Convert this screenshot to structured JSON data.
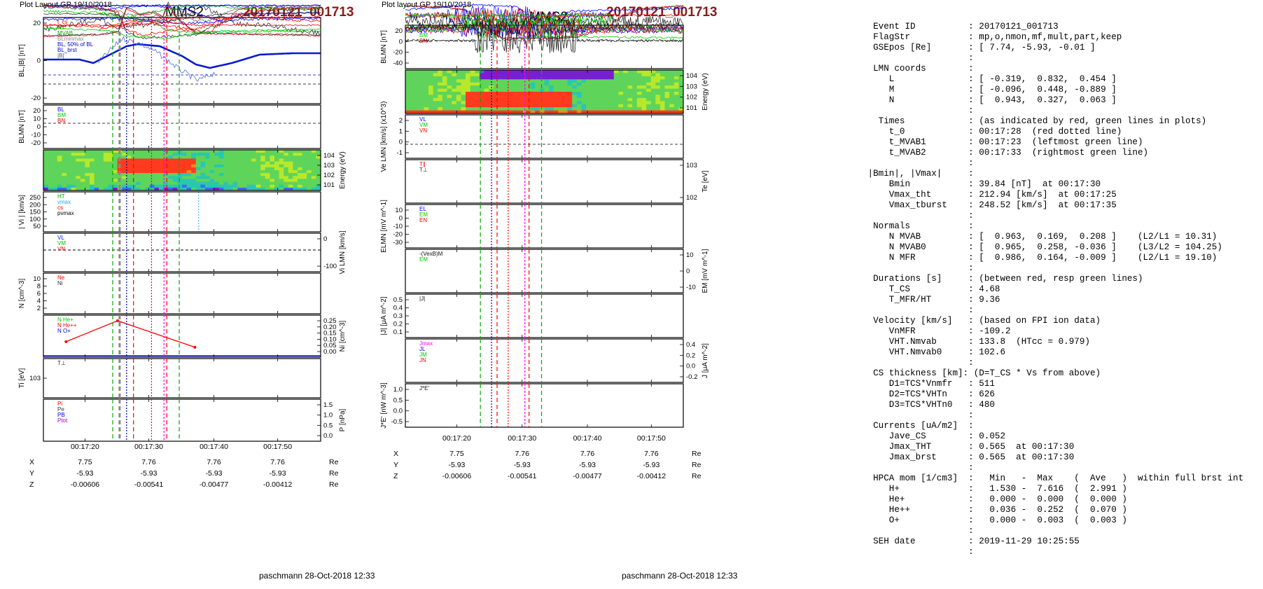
{
  "left": {
    "header": "Plot Layout GP 19/10/2018",
    "sat": "MMS2",
    "event": "20170121_001713",
    "footer": "paschmann 28-Oct-2018 12:33",
    "panels": [
      {
        "ylabel": "BL,|B| [nT]",
        "legend": [
          "t_cs",
          "HT",
          "MVAB",
          "BLminmax",
          "BL, 50% of BL",
          "BL_brst",
          "|B|"
        ],
        "yticks": [
          "20",
          "0",
          "-20"
        ]
      },
      {
        "ylabel": "BLMN [nT]",
        "legend": [
          "BL",
          "BM",
          "BN"
        ],
        "yticks": [
          "20",
          "10",
          "0",
          "-10",
          "-20"
        ]
      },
      {
        "ylabel": "Energy (eV)",
        "legend": [],
        "yticks": [
          "10^4",
          "10^3",
          "10^2",
          "10^1"
        ]
      },
      {
        "ylabel": "| Vi | [km/s]",
        "legend": [
          "HT",
          "vmax",
          "cs",
          "pvmax"
        ],
        "yticks": [
          "250",
          "200",
          "150",
          "100",
          "50"
        ]
      },
      {
        "ylabel": "Vi LMN [km/s]",
        "legend": [
          "VL",
          "VM",
          "VN"
        ],
        "yticks": [
          "0",
          "-100"
        ]
      },
      {
        "ylabel": "N [cm^-3]",
        "legend": [
          "Ne",
          "Ni"
        ],
        "yticks": [
          "10",
          "8",
          "6",
          "4",
          "2"
        ]
      },
      {
        "ylabel": "Ni [cm^-3]",
        "legend": [
          "N He+",
          "N He++",
          "N O+"
        ],
        "yticks": [
          "0.25",
          "0.20",
          "0.15",
          "0.10",
          "0.05",
          "0.00"
        ]
      },
      {
        "ylabel": "Ti [eV]",
        "legend": [
          "T⊥"
        ],
        "yticks": [
          "10^3"
        ]
      },
      {
        "ylabel": "P [nPa]",
        "legend": [
          "Pi",
          "Pe",
          "PB",
          "Ptot"
        ],
        "yticks": [
          "1.5",
          "1.0",
          "0.5",
          "0.0"
        ]
      }
    ],
    "times": [
      "00:17:20",
      "00:17:30",
      "00:17:40",
      "00:17:50"
    ],
    "coords": {
      "X": [
        "7.75",
        "7.76",
        "7.76",
        "7.76"
      ],
      "Y": [
        "-5.93",
        "-5.93",
        "-5.93",
        "-5.93"
      ],
      "Z": [
        "-0.00606",
        "-0.00541",
        "-0.00477",
        "-0.00412"
      ],
      "unit": "Re"
    }
  },
  "middle": {
    "header": "Plot layout GP 19/10/2018",
    "sat": "MMS2",
    "event": "20170121_001713",
    "footer": "paschmann 28-Oct-2018 12:33",
    "panels": [
      {
        "ylabel": "BLMN [nT]",
        "legend": [
          "BL",
          "BM",
          "BN"
        ],
        "yticks": [
          "20",
          "0",
          "-20",
          "-40"
        ]
      },
      {
        "ylabel": "Energy (eV)",
        "legend": [],
        "yticks": [
          "10^4",
          "10^3",
          "10^2",
          "10^1"
        ]
      },
      {
        "ylabel": "Ve LMN [km/s] (x10^3)",
        "legend": [
          "VL",
          "VM",
          "VN"
        ],
        "yticks": [
          "2",
          "1",
          "0",
          "-1"
        ]
      },
      {
        "ylabel": "Te [eV]",
        "legend": [
          "T∥",
          "T⊥"
        ],
        "yticks": [
          "10^3",
          "10^2"
        ]
      },
      {
        "ylabel": "ELMN [mV m^-1]",
        "legend": [
          "EL",
          "EM",
          "EN"
        ],
        "yticks": [
          "10",
          "0",
          "-10",
          "-20",
          "-30"
        ]
      },
      {
        "ylabel": "EM [mV m^-1]",
        "legend": [
          "-(VexB)M",
          "EM"
        ],
        "yticks": [
          "10",
          "0",
          "-10"
        ]
      },
      {
        "ylabel": "|J| [μA m^-2]",
        "legend": [
          "|J|"
        ],
        "yticks": [
          "0.5",
          "0.4",
          "0.3",
          "0.2",
          "0.1"
        ]
      },
      {
        "ylabel": "J [μA m^-2]",
        "legend": [
          "Jmax",
          "JL",
          "JM",
          "JN"
        ],
        "yticks": [
          "0.4",
          "0.2",
          "0.0",
          "-0.2"
        ]
      },
      {
        "ylabel": "J*E' [nW m^-3]",
        "legend": [
          "J*E'"
        ],
        "yticks": [
          "1.0",
          "0.5",
          "0.0",
          "-0.5"
        ]
      }
    ],
    "times": [
      "00:17:20",
      "00:17:30",
      "00:17:40",
      "00:17:50"
    ],
    "coords": {
      "X": [
        "7.75",
        "7.76",
        "7.76",
        "7.76"
      ],
      "Y": [
        "-5.93",
        "-5.93",
        "-5.93",
        "-5.93"
      ],
      "Z": [
        "-0.00606",
        "-0.00541",
        "-0.00477",
        "-0.00412"
      ],
      "unit": "Re"
    }
  },
  "info": [
    "",
    "  Event ID          : 20170121_001713",
    "  FlagStr           : mp,o,nmon,mf,mult,part,keep",
    "  GSEpos [Re]       : [ 7.74, -5.93, -0.01 ]",
    "                    :",
    "  LMN coords        :",
    "     L              : [ -0.319,  0.832,  0.454 ]",
    "     M              : [ -0.096,  0.448, -0.889 ]",
    "     N              : [  0.943,  0.327,  0.063 ]",
    "                    :",
    "   Times            : (as indicated by red, green lines in plots)",
    "     t_0            : 00:17:28  (red dotted line)",
    "     t_MVAB1        : 00:17:23  (leftmost green line)",
    "     t_MVAB2        : 00:17:33  (rightmost green line)",
    "                    :",
    " |Bmin|, |Vmax|     :",
    "     Bmin           : 39.84 [nT]  at 00:17:30",
    "     Vmax_tht       : 212.94 [km/s]  at 00:17:25",
    "     Vmax_tburst    : 248.52 [km/s]  at 00:17:35",
    "                    :",
    "  Normals           :",
    "     N MVAB         : [  0.963,  0.169,  0.208 ]    (L2/L1 = 10.31)",
    "     N MVAB0        : [  0.965,  0.258, -0.036 ]    (L3/L2 = 104.25)",
    "     N MFR          : [  0.986,  0.164, -0.009 ]    (L2/L1 = 19.10)",
    "                    :",
    "  Durations [s]     : (between red, resp green lines)",
    "     T_CS           : 4.68",
    "     T_MFR/HT       : 9.36",
    "                    :",
    "  Velocity [km/s]   : (based on FPI ion data)",
    "     VnMFR          : -109.2",
    "     VHT.Nmvab      : 133.8  (HTcc = 0.979)",
    "     VHT.Nmvab0     : 102.6",
    "                    :",
    "  CS thickness [km]: (D=T_CS * Vs from above)",
    "     D1=TCS*Vnmfr   : 511",
    "     D2=TCS*VHTn    : 626",
    "     D3=TCS*VHTn0   : 480",
    "                    :",
    "  Currents [uA/m2]  :",
    "     Jave_CS        : 0.052",
    "     Jmax_THT       : 0.565  at 00:17:30",
    "     Jmax_brst      : 0.565  at 00:17:30",
    "                    :",
    "  HPCA mom [1/cm3]  :   Min   -  Max    (  Ave   )  within full brst int",
    "     H+             :   1.530 -  7.616  (  2.991 )",
    "     He+            :   0.000 -  0.000  (  0.000 )",
    "     He++           :   0.036 -  0.252  (  0.070 )",
    "     O+             :   0.000 -  0.003  (  0.003 )",
    "                    :",
    "  SEH date          : 2019-11-29 10:25:55",
    "                    :"
  ],
  "chart_data": [
    {
      "type": "line",
      "title": "MMS2 20170121_001713",
      "x_ticks": [
        "00:17:20",
        "00:17:30",
        "00:17:40",
        "00:17:50"
      ],
      "panels": [
        "BL,|B| [nT]",
        "BLMN [nT]",
        "Energy (eV)",
        "| Vi | [km/s]",
        "Vi LMN [km/s]",
        "N [cm^-3]",
        "Ni [cm^-3]",
        "Ti [eV]",
        "P [nPa]"
      ],
      "series": [
        {
          "name": "N He++",
          "x": [
            "00:17:17",
            "00:17:25",
            "00:17:37"
          ],
          "values": [
            0.08,
            0.25,
            0.035
          ]
        }
      ]
    },
    {
      "type": "line",
      "title": "MMS2 20170121_001713",
      "x_ticks": [
        "00:17:20",
        "00:17:30",
        "00:17:40",
        "00:17:50"
      ],
      "panels": [
        "BLMN [nT]",
        "Energy (eV)",
        "Ve LMN [km/s]",
        "Te [eV]",
        "ELMN [mV m^-1]",
        "EM [mV m^-1]",
        "|J| [μA m^-2]",
        "J [μA m^-2]",
        "J*E' [nW m^-3]"
      ]
    }
  ],
  "colors": {
    "event": "#8b1a1a",
    "BL": "#0000ff",
    "BM": "#00cc00",
    "BN": "#ff0000",
    "HT": "#00aa00",
    "cs": "#ff0000",
    "t0": "#ff00ff"
  }
}
